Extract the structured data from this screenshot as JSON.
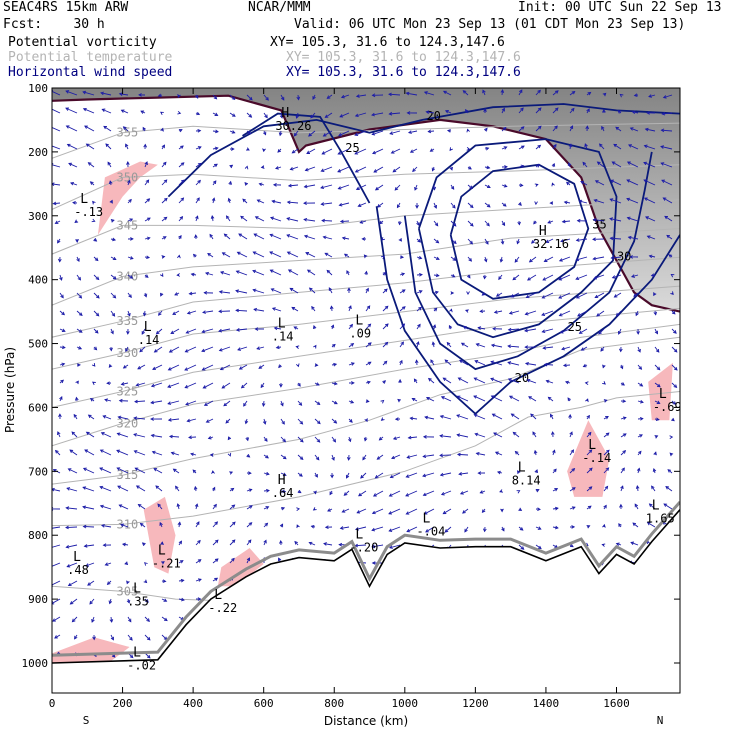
{
  "header": {
    "model": "SEAC4RS 15km ARW",
    "org": "NCAR/MMM",
    "init": "Init: 00 UTC Sun 22 Sep 13",
    "fcst": "Fcst:    30 h",
    "valid": "Valid: 06 UTC Mon 23 Sep 13 (01 CDT Mon 23 Sep 13)"
  },
  "fields": [
    {
      "name": "Potential vorticity",
      "xy": "XY= 105.3, 31.6 to 124.3,147.6",
      "color": "#000000"
    },
    {
      "name": "Potential temperature",
      "xy": "XY= 105.3, 31.6 to 124.3,147.6",
      "color": "#b4b4b4"
    },
    {
      "name": "Horizontal wind speed",
      "xy": "XY= 105.3, 31.6 to 124.3,147.6",
      "color": "#000080"
    }
  ],
  "footer": {
    "south": "S",
    "north": "N"
  },
  "chart_data": {
    "type": "cross-section",
    "xlabel": "Distance (km)",
    "ylabel": "Pressure (hPa)",
    "xlim": [
      0,
      1780
    ],
    "ylim": [
      1000,
      100
    ],
    "xticks": [
      0,
      200,
      400,
      600,
      800,
      1000,
      1200,
      1400,
      1600
    ],
    "yticks": [
      100,
      200,
      300,
      400,
      500,
      600,
      700,
      800,
      900,
      1000
    ],
    "terrain": [
      [
        0,
        1000
      ],
      [
        300,
        995
      ],
      [
        380,
        940
      ],
      [
        450,
        900
      ],
      [
        550,
        865
      ],
      [
        620,
        845
      ],
      [
        700,
        835
      ],
      [
        800,
        840
      ],
      [
        850,
        822
      ],
      [
        900,
        880
      ],
      [
        950,
        830
      ],
      [
        1000,
        812
      ],
      [
        1100,
        820
      ],
      [
        1200,
        818
      ],
      [
        1300,
        818
      ],
      [
        1400,
        840
      ],
      [
        1500,
        818
      ],
      [
        1550,
        860
      ],
      [
        1600,
        830
      ],
      [
        1650,
        845
      ],
      [
        1700,
        810
      ],
      [
        1780,
        760
      ]
    ],
    "theta_contours": [
      {
        "label": "305",
        "points": [
          [
            0,
            880
          ],
          [
            200,
            888
          ],
          [
            350,
            900
          ],
          [
            450,
            902
          ]
        ]
      },
      {
        "label": "310",
        "points": [
          [
            0,
            785
          ],
          [
            200,
            783
          ],
          [
            400,
            770
          ],
          [
            700,
            740
          ],
          [
            1000,
            700
          ],
          [
            1200,
            660
          ],
          [
            1350,
            615
          ],
          [
            1500,
            600
          ],
          [
            1600,
            585
          ],
          [
            1780,
            575
          ]
        ]
      },
      {
        "label": "315",
        "points": [
          [
            0,
            720
          ],
          [
            200,
            706
          ],
          [
            400,
            680
          ],
          [
            700,
            650
          ],
          [
            900,
            620
          ],
          [
            1100,
            580
          ],
          [
            1300,
            555
          ],
          [
            1500,
            510
          ],
          [
            1780,
            490
          ]
        ]
      },
      {
        "label": "320",
        "points": [
          [
            0,
            660
          ],
          [
            200,
            625
          ],
          [
            400,
            595
          ],
          [
            700,
            570
          ],
          [
            1000,
            540
          ],
          [
            1300,
            515
          ],
          [
            1500,
            490
          ],
          [
            1780,
            470
          ]
        ]
      },
      {
        "label": "325",
        "points": [
          [
            0,
            600
          ],
          [
            200,
            575
          ],
          [
            400,
            545
          ],
          [
            700,
            520
          ],
          [
            1000,
            495
          ],
          [
            1300,
            470
          ],
          [
            1780,
            445
          ]
        ]
      },
      {
        "label": "330",
        "points": [
          [
            0,
            540
          ],
          [
            200,
            515
          ],
          [
            400,
            485
          ],
          [
            700,
            470
          ],
          [
            1000,
            450
          ],
          [
            1300,
            430
          ],
          [
            1780,
            410
          ]
        ]
      },
      {
        "label": "335",
        "points": [
          [
            0,
            490
          ],
          [
            200,
            465
          ],
          [
            400,
            435
          ],
          [
            700,
            420
          ],
          [
            1000,
            405
          ],
          [
            1300,
            385
          ],
          [
            1780,
            365
          ]
        ]
      },
      {
        "label": "340",
        "points": [
          [
            0,
            440
          ],
          [
            200,
            395
          ],
          [
            400,
            380
          ],
          [
            700,
            370
          ],
          [
            1000,
            360
          ],
          [
            1300,
            335
          ],
          [
            1780,
            320
          ]
        ]
      },
      {
        "label": "345",
        "points": [
          [
            0,
            360
          ],
          [
            200,
            315
          ],
          [
            400,
            315
          ],
          [
            700,
            320
          ],
          [
            1000,
            300
          ],
          [
            1300,
            290
          ],
          [
            1780,
            275
          ]
        ]
      },
      {
        "label": "350",
        "points": [
          [
            0,
            290
          ],
          [
            200,
            240
          ],
          [
            400,
            235
          ],
          [
            700,
            245
          ],
          [
            1000,
            235
          ],
          [
            1300,
            230
          ],
          [
            1780,
            220
          ]
        ]
      },
      {
        "label": "355",
        "points": [
          [
            0,
            210
          ],
          [
            200,
            170
          ],
          [
            400,
            160
          ],
          [
            700,
            170
          ],
          [
            1000,
            165
          ],
          [
            1300,
            160
          ],
          [
            1780,
            155
          ]
        ]
      }
    ],
    "wind_speed_contours": [
      {
        "label": "20",
        "points": [
          [
            330,
            270
          ],
          [
            450,
            205
          ],
          [
            600,
            160
          ],
          [
            750,
            150
          ],
          [
            900,
            170
          ],
          [
            1050,
            150
          ],
          [
            1250,
            130
          ],
          [
            1450,
            125
          ],
          [
            1600,
            135
          ],
          [
            1780,
            140
          ]
        ]
      },
      {
        "label": "20",
        "points": [
          [
            920,
            285
          ],
          [
            950,
            400
          ],
          [
            1000,
            480
          ],
          [
            1100,
            560
          ],
          [
            1200,
            610
          ],
          [
            1300,
            560
          ],
          [
            1450,
            520
          ],
          [
            1580,
            470
          ],
          [
            1700,
            400
          ],
          [
            1780,
            330
          ]
        ]
      },
      {
        "label": "25",
        "points": [
          [
            540,
            175
          ],
          [
            640,
            140
          ],
          [
            760,
            145
          ],
          [
            820,
            200
          ],
          [
            880,
            260
          ],
          [
            900,
            280
          ]
        ]
      },
      {
        "label": "25",
        "points": [
          [
            1000,
            300
          ],
          [
            1030,
            420
          ],
          [
            1100,
            500
          ],
          [
            1200,
            540
          ],
          [
            1320,
            520
          ],
          [
            1450,
            480
          ],
          [
            1580,
            420
          ],
          [
            1650,
            340
          ],
          [
            1680,
            260
          ],
          [
            1700,
            200
          ]
        ]
      },
      {
        "label": "30",
        "points": [
          [
            1040,
            320
          ],
          [
            1080,
            420
          ],
          [
            1150,
            470
          ],
          [
            1250,
            490
          ],
          [
            1380,
            470
          ],
          [
            1500,
            420
          ],
          [
            1590,
            370
          ],
          [
            1600,
            270
          ],
          [
            1550,
            200
          ],
          [
            1400,
            180
          ],
          [
            1200,
            190
          ],
          [
            1090,
            240
          ],
          [
            1040,
            320
          ]
        ]
      },
      {
        "label": "35",
        "points": [
          [
            1130,
            330
          ],
          [
            1160,
            400
          ],
          [
            1250,
            430
          ],
          [
            1380,
            420
          ],
          [
            1480,
            380
          ],
          [
            1520,
            320
          ],
          [
            1480,
            250
          ],
          [
            1380,
            220
          ],
          [
            1250,
            230
          ],
          [
            1160,
            270
          ],
          [
            1130,
            330
          ]
        ]
      }
    ],
    "pv_labels": [
      {
        "text": "L",
        "sub": "-.13",
        "x": 80,
        "p": 280
      },
      {
        "text": "L",
        "sub": ".14",
        "x": 260,
        "p": 480
      },
      {
        "text": "L",
        "sub": ".14",
        "x": 640,
        "p": 475
      },
      {
        "text": "L",
        "sub": ".09",
        "x": 860,
        "p": 470
      },
      {
        "text": "H",
        "sub": ".64",
        "x": 640,
        "p": 720
      },
      {
        "text": "L",
        "sub": "-.20",
        "x": 860,
        "p": 805
      },
      {
        "text": "L",
        "sub": "-.04",
        "x": 1050,
        "p": 780
      },
      {
        "text": "L",
        "sub": "8.14",
        "x": 1320,
        "p": 700
      },
      {
        "text": "L",
        "sub": "-.69",
        "x": 1720,
        "p": 585
      },
      {
        "text": "L",
        "sub": "-.14",
        "x": 1520,
        "p": 665
      },
      {
        "text": "L",
        "sub": "1.65",
        "x": 1700,
        "p": 760
      },
      {
        "text": "L",
        "sub": "-.21",
        "x": 300,
        "p": 830
      },
      {
        "text": "L",
        "sub": ".48",
        "x": 60,
        "p": 840
      },
      {
        "text": "L",
        "sub": ".35",
        "x": 230,
        "p": 890
      },
      {
        "text": "L",
        "sub": "-.02",
        "x": 230,
        "p": 990
      },
      {
        "text": "L",
        "sub": "-.22",
        "x": 460,
        "p": 900
      },
      {
        "text": "H",
        "sub": "32.16",
        "x": 1380,
        "p": 330
      },
      {
        "text": "H",
        "sub": "30.26",
        "x": 650,
        "p": 145
      }
    ],
    "wind_contour_labels": [
      "20",
      "25",
      "30",
      "35",
      "25",
      "20",
      "20",
      "25",
      "30"
    ],
    "pv_shaded_regions": [
      [
        [
          150,
          240
        ],
        [
          250,
          215
        ],
        [
          300,
          220
        ],
        [
          250,
          240
        ],
        [
          200,
          270
        ],
        [
          130,
          330
        ],
        [
          150,
          240
        ]
      ],
      [
        [
          0,
          985
        ],
        [
          120,
          960
        ],
        [
          220,
          975
        ],
        [
          160,
          1000
        ],
        [
          0,
          1000
        ]
      ],
      [
        [
          260,
          760
        ],
        [
          320,
          740
        ],
        [
          350,
          800
        ],
        [
          330,
          860
        ],
        [
          290,
          850
        ],
        [
          260,
          760
        ]
      ],
      [
        [
          480,
          850
        ],
        [
          560,
          820
        ],
        [
          600,
          845
        ],
        [
          520,
          880
        ],
        [
          470,
          880
        ]
      ],
      [
        [
          1460,
          700
        ],
        [
          1520,
          620
        ],
        [
          1580,
          680
        ],
        [
          1560,
          740
        ],
        [
          1480,
          740
        ]
      ],
      [
        [
          1690,
          560
        ],
        [
          1760,
          530
        ],
        [
          1750,
          620
        ],
        [
          1700,
          620
        ]
      ]
    ],
    "tropopause_fill_gray": true
  }
}
